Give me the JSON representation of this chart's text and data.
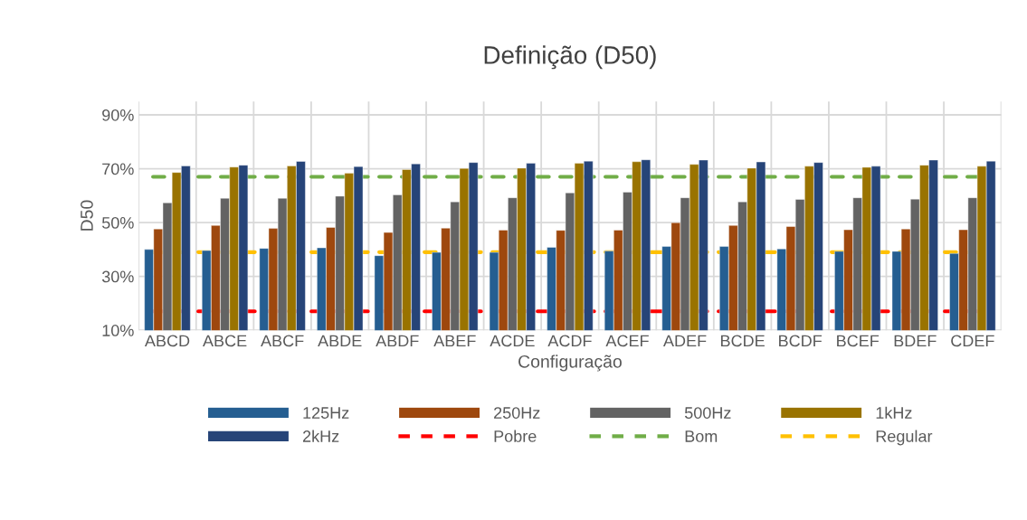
{
  "chart_data": {
    "type": "bar",
    "title": "Definição (D50)",
    "xlabel": "Configuração",
    "ylabel": "D50",
    "categories": [
      "ABCD",
      "ABCE",
      "ABCF",
      "ABDE",
      "ABDF",
      "ABEF",
      "ACDE",
      "ACDF",
      "ACEF",
      "ADEF",
      "BCDE",
      "BCDF",
      "BCEF",
      "BDEF",
      "CDEF"
    ],
    "series": [
      {
        "name": "125Hz",
        "color": "#255e91",
        "values": [
          40,
          39.6,
          40.4,
          40.6,
          37.7,
          38.9,
          38.9,
          40.8,
          39.4,
          41.1,
          41.1,
          40.2,
          39.3,
          39.3,
          38.5
        ]
      },
      {
        "name": "250Hz",
        "color": "#9e480e",
        "values": [
          47.6,
          48.9,
          47.8,
          48.2,
          46.3,
          47.9,
          47.2,
          47.1,
          47.2,
          49.9,
          48.9,
          48.5,
          47.3,
          47.6,
          47.3
        ]
      },
      {
        "name": "500Hz",
        "color": "#636363",
        "values": [
          57.3,
          59,
          59,
          59.8,
          60.3,
          57.7,
          59.2,
          61,
          61.3,
          59.2,
          57.7,
          58.6,
          59.2,
          58.7,
          59.2
        ]
      },
      {
        "name": "1kHz",
        "color": "#997300",
        "values": [
          68.6,
          70.6,
          71,
          68.3,
          69.7,
          70.1,
          70.2,
          72,
          72.6,
          71.6,
          70.2,
          70.9,
          70.5,
          71.3,
          70.9
        ]
      },
      {
        "name": "2kHz",
        "color": "#264478",
        "values": [
          71,
          71.3,
          72.7,
          70.8,
          71.8,
          72.3,
          72,
          72.8,
          73.3,
          73.2,
          72.5,
          72.3,
          70.9,
          73.2,
          72.8
        ]
      }
    ],
    "ref_lines": [
      {
        "axis": "y",
        "value": 17,
        "label": "Pobre",
        "color": "#ff0000",
        "line_style": "dashed"
      },
      {
        "axis": "y",
        "value": 67,
        "label": "Bom",
        "color": "#70ad47",
        "line_style": "dashed"
      },
      {
        "axis": "y",
        "value": 39,
        "label": "Regular",
        "color": "#ffc000",
        "line_style": "dashed"
      }
    ],
    "ylim": [
      10,
      95
    ],
    "yticks": [
      {
        "value": 10,
        "label": "10%"
      },
      {
        "value": 30,
        "label": "30%"
      },
      {
        "value": 50,
        "label": "50%"
      },
      {
        "value": 70,
        "label": "70%"
      },
      {
        "value": 90,
        "label": "90%"
      }
    ],
    "grid": true,
    "legend": "bottom"
  }
}
